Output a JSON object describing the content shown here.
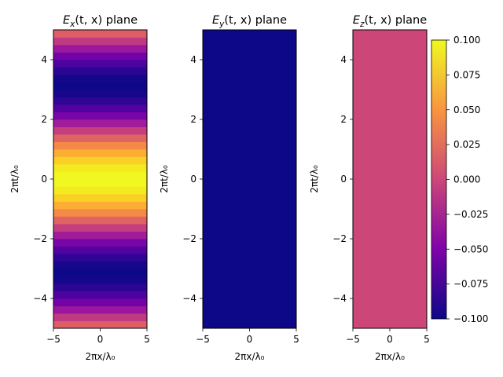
{
  "chart_data": [
    {
      "type": "heatmap",
      "title_var": "E",
      "title_sub": "x",
      "title_args": "(t, x)",
      "title_suffix": "plane",
      "xlabel": "2πx/λ₀",
      "ylabel": "2πt/λ₀",
      "xlim": [
        -5,
        5
      ],
      "ylim": [
        -5,
        5
      ],
      "xticks": [
        -5,
        0,
        5
      ],
      "yticks": [
        -4,
        -2,
        0,
        2,
        4
      ],
      "field": "0.1*cos(y)",
      "rows": 40,
      "vmin": -0.1,
      "vmax": 0.1
    },
    {
      "type": "heatmap",
      "title_var": "E",
      "title_sub": "y",
      "title_args": "(t, x)",
      "title_suffix": "plane",
      "xlabel": "2πx/λ₀",
      "ylabel": "2πt/λ₀",
      "xlim": [
        -5,
        5
      ],
      "ylim": [
        -5,
        5
      ],
      "xticks": [
        -5,
        0,
        5
      ],
      "yticks": [
        -4,
        -2,
        0,
        2,
        4
      ],
      "field": "constant",
      "value": 0.0,
      "clim": [
        0.0,
        0.0001
      ],
      "note_color": "#0d0887"
    },
    {
      "type": "heatmap",
      "title_var": "E",
      "title_sub": "z",
      "title_args": "(t, x)",
      "title_suffix": "plane",
      "xlabel": "2πx/λ₀",
      "ylabel": "2πt/λ₀",
      "xlim": [
        -5,
        5
      ],
      "ylim": [
        -5,
        5
      ],
      "xticks": [
        -5,
        0,
        5
      ],
      "yticks": [
        -4,
        -2,
        0,
        2,
        4
      ],
      "field": "constant",
      "value": 0.0,
      "clim": [
        -0.1,
        0.1
      ],
      "colorbar": {
        "min": -0.1,
        "max": 0.1,
        "ticks": [
          "-0.100",
          "-0.075",
          "-0.050",
          "-0.025",
          "0.000",
          "0.025",
          "0.050",
          "0.075",
          "0.100"
        ],
        "colormap": "plasma"
      }
    }
  ]
}
